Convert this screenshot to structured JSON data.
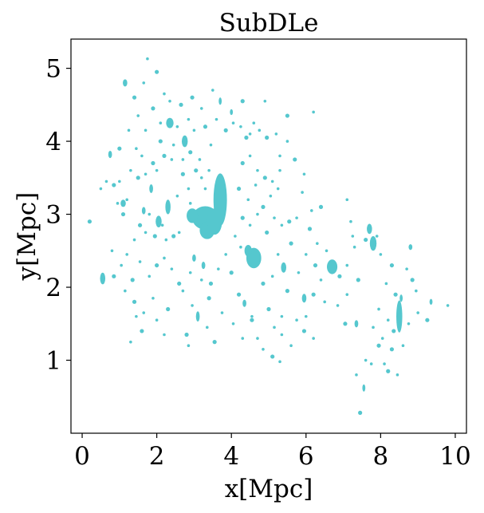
{
  "chart_data": {
    "type": "scatter",
    "title": "SubDLe",
    "xlabel": "x[Mpc]",
    "ylabel": "y[Mpc]",
    "xlim": [
      -0.3,
      10.3
    ],
    "ylim": [
      0.0,
      5.4
    ],
    "xticks": [
      0,
      2,
      4,
      6,
      8,
      10
    ],
    "yticks": [
      1,
      2,
      3,
      4,
      5
    ],
    "xtick_labels": [
      "0",
      "2",
      "4",
      "6",
      "8",
      "10"
    ],
    "ytick_labels": [
      "1",
      "2",
      "3",
      "4",
      "5"
    ],
    "grid": false,
    "point_color": "#55c7ce",
    "clumps": [
      {
        "x": 3.3,
        "y": 2.95,
        "rx": 0.35,
        "ry": 0.16
      },
      {
        "x": 3.35,
        "y": 2.78,
        "rx": 0.2,
        "ry": 0.12
      },
      {
        "x": 3.7,
        "y": 3.2,
        "rx": 0.18,
        "ry": 0.36
      },
      {
        "x": 3.55,
        "y": 2.9,
        "rx": 0.2,
        "ry": 0.18
      },
      {
        "x": 2.95,
        "y": 2.98,
        "rx": 0.15,
        "ry": 0.1
      },
      {
        "x": 4.6,
        "y": 2.4,
        "rx": 0.2,
        "ry": 0.14
      },
      {
        "x": 4.45,
        "y": 2.5,
        "rx": 0.1,
        "ry": 0.08
      },
      {
        "x": 8.5,
        "y": 1.6,
        "rx": 0.08,
        "ry": 0.22
      },
      {
        "x": 6.7,
        "y": 2.28,
        "rx": 0.14,
        "ry": 0.1
      },
      {
        "x": 7.8,
        "y": 2.6,
        "rx": 0.09,
        "ry": 0.1
      },
      {
        "x": 7.7,
        "y": 2.8,
        "rx": 0.07,
        "ry": 0.07
      },
      {
        "x": 0.55,
        "y": 2.12,
        "rx": 0.07,
        "ry": 0.08
      },
      {
        "x": 2.35,
        "y": 4.25,
        "rx": 0.1,
        "ry": 0.07
      },
      {
        "x": 2.75,
        "y": 4.0,
        "rx": 0.08,
        "ry": 0.08
      },
      {
        "x": 2.3,
        "y": 3.1,
        "rx": 0.07,
        "ry": 0.1
      },
      {
        "x": 2.05,
        "y": 2.9,
        "rx": 0.08,
        "ry": 0.08
      },
      {
        "x": 1.15,
        "y": 4.8,
        "rx": 0.06,
        "ry": 0.05
      },
      {
        "x": 0.75,
        "y": 3.82,
        "rx": 0.05,
        "ry": 0.05
      },
      {
        "x": 5.4,
        "y": 2.27,
        "rx": 0.07,
        "ry": 0.07
      },
      {
        "x": 5.95,
        "y": 1.85,
        "rx": 0.06,
        "ry": 0.06
      },
      {
        "x": 3.0,
        "y": 2.4,
        "rx": 0.05,
        "ry": 0.05
      },
      {
        "x": 3.25,
        "y": 2.3,
        "rx": 0.05,
        "ry": 0.05
      },
      {
        "x": 3.1,
        "y": 1.6,
        "rx": 0.05,
        "ry": 0.07
      },
      {
        "x": 4.35,
        "y": 1.78,
        "rx": 0.05,
        "ry": 0.05
      },
      {
        "x": 7.35,
        "y": 1.5,
        "rx": 0.05,
        "ry": 0.05
      },
      {
        "x": 7.55,
        "y": 0.62,
        "rx": 0.04,
        "ry": 0.05
      },
      {
        "x": 1.1,
        "y": 3.15,
        "rx": 0.07,
        "ry": 0.05
      },
      {
        "x": 1.65,
        "y": 3.05,
        "rx": 0.05,
        "ry": 0.05
      },
      {
        "x": 1.85,
        "y": 3.35,
        "rx": 0.05,
        "ry": 0.06
      },
      {
        "x": 3.7,
        "y": 4.55,
        "rx": 0.04,
        "ry": 0.05
      },
      {
        "x": 4.0,
        "y": 4.4,
        "rx": 0.04,
        "ry": 0.04
      },
      {
        "x": 8.8,
        "y": 2.55,
        "rx": 0.05,
        "ry": 0.04
      },
      {
        "x": 8.55,
        "y": 1.85,
        "rx": 0.04,
        "ry": 0.05
      },
      {
        "x": 9.35,
        "y": 1.8,
        "rx": 0.04,
        "ry": 0.04
      }
    ],
    "specks": [
      [
        0.2,
        2.9
      ],
      [
        0.5,
        3.35
      ],
      [
        0.65,
        3.45
      ],
      [
        0.85,
        3.4
      ],
      [
        0.95,
        3.15
      ],
      [
        1.0,
        3.45
      ],
      [
        1.1,
        3.0
      ],
      [
        1.2,
        3.2
      ],
      [
        1.3,
        3.6
      ],
      [
        1.5,
        3.5
      ],
      [
        1.6,
        3.8
      ],
      [
        1.7,
        3.55
      ],
      [
        1.9,
        3.7
      ],
      [
        2.0,
        3.6
      ],
      [
        1.8,
        3.0
      ],
      [
        1.55,
        2.85
      ],
      [
        1.4,
        2.65
      ],
      [
        1.7,
        2.75
      ],
      [
        1.95,
        2.7
      ],
      [
        2.15,
        2.85
      ],
      [
        2.25,
        2.65
      ],
      [
        2.45,
        2.7
      ],
      [
        2.6,
        2.75
      ],
      [
        2.55,
        3.25
      ],
      [
        2.7,
        3.55
      ],
      [
        2.85,
        3.35
      ],
      [
        2.9,
        3.15
      ],
      [
        3.05,
        3.6
      ],
      [
        3.2,
        3.5
      ],
      [
        3.3,
        3.35
      ],
      [
        2.2,
        3.8
      ],
      [
        2.4,
        3.75
      ],
      [
        2.7,
        3.75
      ],
      [
        2.9,
        3.85
      ],
      [
        3.15,
        3.75
      ],
      [
        3.4,
        3.6
      ],
      [
        2.1,
        4.0
      ],
      [
        2.45,
        3.95
      ],
      [
        2.55,
        4.2
      ],
      [
        2.65,
        4.5
      ],
      [
        2.85,
        4.3
      ],
      [
        3.0,
        4.15
      ],
      [
        3.3,
        4.2
      ],
      [
        3.45,
        3.95
      ],
      [
        3.6,
        4.3
      ],
      [
        3.85,
        4.15
      ],
      [
        4.05,
        4.25
      ],
      [
        4.25,
        4.2
      ],
      [
        4.4,
        4.05
      ],
      [
        4.6,
        4.25
      ],
      [
        4.75,
        4.15
      ],
      [
        4.95,
        4.05
      ],
      [
        5.2,
        4.1
      ],
      [
        5.5,
        4.0
      ],
      [
        4.3,
        3.7
      ],
      [
        4.5,
        3.8
      ],
      [
        4.7,
        3.6
      ],
      [
        4.9,
        3.5
      ],
      [
        5.1,
        3.45
      ],
      [
        5.3,
        3.6
      ],
      [
        4.2,
        3.35
      ],
      [
        4.45,
        3.2
      ],
      [
        4.65,
        3.4
      ],
      [
        4.85,
        3.1
      ],
      [
        5.05,
        3.25
      ],
      [
        5.25,
        3.35
      ],
      [
        4.3,
        2.95
      ],
      [
        4.5,
        2.85
      ],
      [
        4.7,
        3.0
      ],
      [
        4.95,
        2.75
      ],
      [
        5.15,
        2.95
      ],
      [
        5.35,
        2.85
      ],
      [
        5.55,
        2.9
      ],
      [
        5.75,
        2.95
      ],
      [
        5.9,
        3.3
      ],
      [
        6.1,
        2.8
      ],
      [
        4.1,
        2.7
      ],
      [
        4.25,
        2.55
      ],
      [
        4.0,
        2.2
      ],
      [
        3.85,
        2.45
      ],
      [
        3.65,
        2.25
      ],
      [
        3.45,
        2.05
      ],
      [
        3.2,
        2.1
      ],
      [
        2.9,
        2.2
      ],
      [
        2.6,
        2.05
      ],
      [
        2.4,
        2.25
      ],
      [
        2.2,
        2.4
      ],
      [
        2.0,
        2.3
      ],
      [
        1.8,
        2.15
      ],
      [
        1.55,
        2.35
      ],
      [
        1.35,
        2.1
      ],
      [
        1.2,
        2.45
      ],
      [
        1.05,
        2.3
      ],
      [
        0.85,
        2.15
      ],
      [
        0.8,
        2.5
      ],
      [
        1.15,
        1.95
      ],
      [
        1.4,
        1.8
      ],
      [
        1.65,
        1.65
      ],
      [
        1.9,
        1.85
      ],
      [
        2.3,
        1.7
      ],
      [
        2.7,
        1.95
      ],
      [
        2.95,
        1.75
      ],
      [
        3.4,
        1.85
      ],
      [
        3.75,
        1.65
      ],
      [
        4.05,
        1.5
      ],
      [
        4.2,
        1.9
      ],
      [
        4.55,
        1.6
      ],
      [
        4.7,
        1.3
      ],
      [
        5.0,
        1.7
      ],
      [
        5.15,
        1.45
      ],
      [
        5.35,
        1.6
      ],
      [
        5.5,
        1.95
      ],
      [
        5.75,
        1.55
      ],
      [
        6.0,
        1.6
      ],
      [
        6.2,
        1.9
      ],
      [
        6.4,
        2.1
      ],
      [
        6.5,
        1.8
      ],
      [
        6.25,
        2.3
      ],
      [
        6.0,
        2.45
      ],
      [
        5.8,
        2.2
      ],
      [
        5.6,
        2.6
      ],
      [
        5.25,
        2.45
      ],
      [
        5.1,
        2.15
      ],
      [
        4.85,
        2.05
      ],
      [
        6.3,
        2.6
      ],
      [
        6.55,
        2.5
      ],
      [
        6.9,
        2.15
      ],
      [
        7.1,
        2.3
      ],
      [
        7.3,
        2.55
      ],
      [
        7.4,
        2.1
      ],
      [
        7.1,
        1.9
      ],
      [
        6.85,
        1.75
      ],
      [
        7.05,
        1.5
      ],
      [
        7.25,
        2.7
      ],
      [
        6.2,
        4.4
      ],
      [
        5.5,
        4.35
      ],
      [
        4.9,
        4.55
      ],
      [
        2.2,
        4.65
      ],
      [
        2.0,
        4.95
      ],
      [
        1.75,
        5.13
      ],
      [
        1.65,
        4.8
      ],
      [
        1.4,
        4.6
      ],
      [
        1.5,
        4.35
      ],
      [
        1.25,
        4.15
      ],
      [
        1.0,
        3.9
      ],
      [
        1.45,
        3.9
      ],
      [
        1.7,
        4.15
      ],
      [
        1.9,
        4.45
      ],
      [
        2.1,
        4.25
      ],
      [
        2.35,
        4.55
      ],
      [
        2.95,
        4.6
      ],
      [
        3.2,
        4.45
      ],
      [
        3.5,
        4.7
      ],
      [
        4.3,
        4.55
      ],
      [
        4.5,
        4.1
      ],
      [
        5.3,
        3.8
      ],
      [
        5.7,
        3.75
      ],
      [
        5.95,
        3.55
      ],
      [
        6.15,
        3.05
      ],
      [
        6.4,
        3.1
      ],
      [
        7.1,
        3.2
      ],
      [
        7.2,
        2.9
      ],
      [
        7.6,
        2.65
      ],
      [
        7.9,
        2.7
      ],
      [
        8.0,
        2.45
      ],
      [
        8.3,
        2.3
      ],
      [
        8.7,
        2.25
      ],
      [
        8.15,
        2.05
      ],
      [
        8.4,
        1.9
      ],
      [
        7.95,
        1.7
      ],
      [
        8.2,
        1.55
      ],
      [
        8.35,
        1.4
      ],
      [
        8.75,
        1.5
      ],
      [
        8.6,
        1.2
      ],
      [
        8.3,
        1.15
      ],
      [
        8.05,
        1.3
      ],
      [
        7.8,
        1.45
      ],
      [
        7.95,
        1.2
      ],
      [
        8.1,
        0.95
      ],
      [
        8.45,
        0.8
      ],
      [
        8.2,
        0.85
      ],
      [
        7.6,
        1.0
      ],
      [
        7.35,
        0.8
      ],
      [
        7.45,
        0.28
      ],
      [
        7.75,
        0.95
      ],
      [
        9.0,
        1.65
      ],
      [
        9.25,
        1.55
      ],
      [
        9.8,
        1.75
      ],
      [
        8.95,
        1.95
      ],
      [
        8.85,
        2.1
      ],
      [
        1.3,
        1.25
      ],
      [
        1.45,
        1.6
      ],
      [
        1.6,
        1.4
      ],
      [
        2.0,
        1.55
      ],
      [
        2.2,
        1.35
      ],
      [
        2.8,
        1.35
      ],
      [
        2.85,
        1.2
      ],
      [
        3.35,
        1.45
      ],
      [
        3.55,
        1.25
      ],
      [
        4.3,
        1.3
      ],
      [
        4.85,
        1.15
      ],
      [
        5.1,
        1.05
      ],
      [
        5.35,
        1.35
      ],
      [
        5.6,
        1.2
      ],
      [
        5.95,
        1.4
      ],
      [
        6.2,
        1.3
      ],
      [
        5.3,
        0.98
      ],
      [
        4.55,
        1.55
      ]
    ]
  }
}
